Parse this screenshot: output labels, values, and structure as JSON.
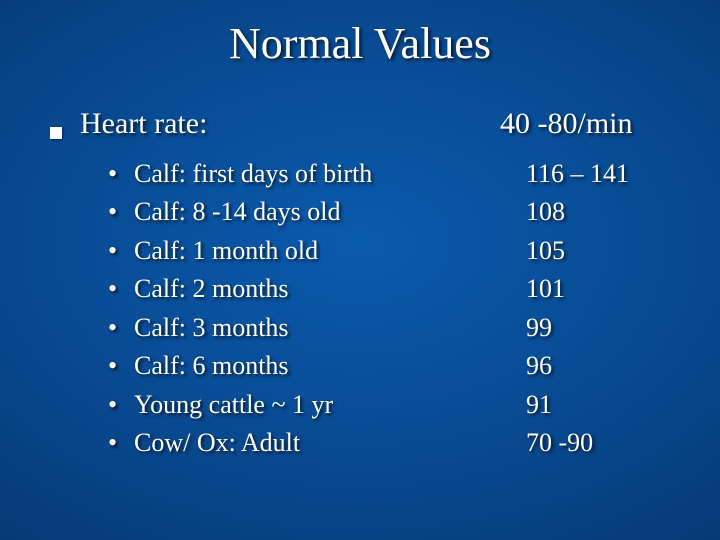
{
  "slide": {
    "title": "Normal Values",
    "background": {
      "center_color": "#0a5aad",
      "mid_color": "#084a92",
      "outer_color": "#053974",
      "edge_color": "#032a5a"
    },
    "text_color": "#ffffff",
    "title_fontsize": 44,
    "main_fontsize": 30,
    "sub_fontsize": 26,
    "font_family": "Times New Roman",
    "bullet_color": "#ffffff",
    "main": {
      "label": "Heart rate:",
      "value": "40 -80/min"
    },
    "items": [
      {
        "label": "Calf: first days of birth",
        "value": "116 – 141"
      },
      {
        "label": "Calf: 8 -14 days old",
        "value": "108"
      },
      {
        "label": "Calf: 1 month old",
        "value": "105"
      },
      {
        "label": "Calf: 2 months",
        "value": "101"
      },
      {
        "label": "Calf: 3 months",
        "value": "99"
      },
      {
        "label": "Calf: 6 months",
        "value": "96"
      },
      {
        "label": "Young cattle ~ 1 yr",
        "value": "91"
      },
      {
        "label": "Cow/ Ox: Adult",
        "value": "70 -90"
      }
    ]
  }
}
